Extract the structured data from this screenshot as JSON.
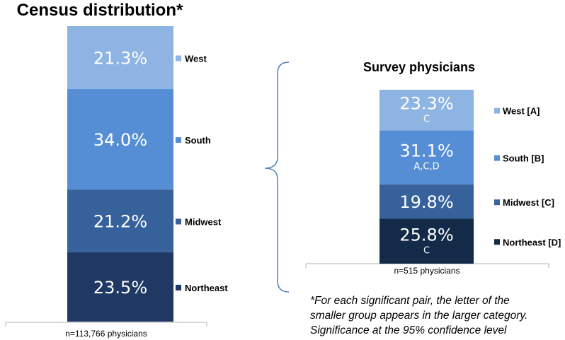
{
  "chart_data": [
    {
      "type": "stacked-bar",
      "title": "Census distribution*",
      "xlabel": "n=113,766 physicians",
      "unit": "%",
      "segments": [
        {
          "name": "Northeast",
          "value": 23.5,
          "display": "23.5%",
          "sig": "",
          "color": "#1f3864"
        },
        {
          "name": "Midwest",
          "value": 21.2,
          "display": "21.2%",
          "sig": "",
          "color": "#36619b"
        },
        {
          "name": "South",
          "value": 34.0,
          "display": "34.0%",
          "sig": "",
          "color": "#558ed5"
        },
        {
          "name": "West",
          "value": 21.3,
          "display": "21.3%",
          "sig": "",
          "color": "#8eb4e3"
        }
      ]
    },
    {
      "type": "stacked-bar",
      "title": "Survey physicians",
      "xlabel": "n=515 physicians",
      "unit": "%",
      "segments": [
        {
          "name": "Northeast [D]",
          "value": 25.8,
          "display": "25.8%",
          "sig": "C",
          "color": "#132a48"
        },
        {
          "name": "Midwest [C]",
          "value": 19.8,
          "display": "19.8%",
          "sig": "",
          "color": "#36619b"
        },
        {
          "name": "South [B]",
          "value": 31.1,
          "display": "31.1%",
          "sig": "A,C,D",
          "color": "#558ed5"
        },
        {
          "name": "West [A]",
          "value": 23.3,
          "display": "23.3%",
          "sig": "C",
          "color": "#8eb4e3"
        }
      ]
    }
  ],
  "footnote": [
    "*For each significant pair, the letter of the",
    "smaller group appears in the larger category.",
    "Significance at the 95% confidence level"
  ]
}
